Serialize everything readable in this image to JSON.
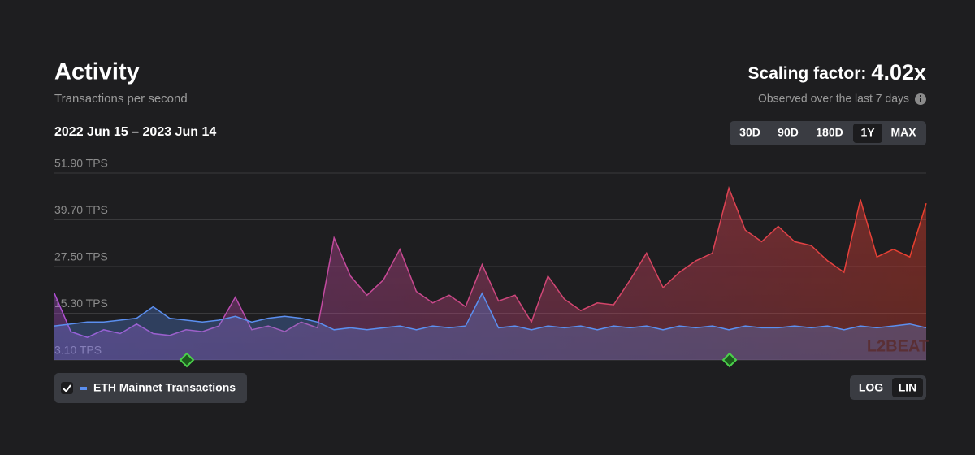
{
  "header": {
    "title": "Activity",
    "subtitle": "Transactions per second",
    "date_range": "2022 Jun 15 – 2023 Jun 14",
    "scaling_label": "Scaling factor:",
    "scaling_value": "4.02x",
    "scaling_note": "Observed over the last 7 days"
  },
  "range_buttons": {
    "labels": [
      "30D",
      "90D",
      "180D",
      "1Y",
      "MAX"
    ],
    "selected": 3
  },
  "scale_buttons": {
    "labels": [
      "LOG",
      "LIN"
    ]
  },
  "chart_data": {
    "type": "area",
    "ylim": [
      3.1,
      51.9
    ],
    "yticks": [
      {
        "value": 3.1,
        "label": "3.10 TPS"
      },
      {
        "value": 15.3,
        "label": "15.30 TPS"
      },
      {
        "value": 27.5,
        "label": "27.50 TPS"
      },
      {
        "value": 39.7,
        "label": "39.70 TPS"
      },
      {
        "value": 51.9,
        "label": "51.90 TPS"
      }
    ],
    "grid": true,
    "log_scale": false,
    "watermark": "L2BEAT",
    "series": [
      {
        "color": [
          "#b04fd4",
          "#ea3f2c"
        ],
        "values": [
          20.5,
          10.5,
          9,
          11,
          10,
          12.5,
          10,
          9.5,
          11,
          10.5,
          12,
          19.5,
          11,
          12,
          10.5,
          13,
          11.5,
          35,
          25,
          20,
          24,
          32,
          21,
          18,
          20,
          17,
          28,
          18.5,
          20,
          13,
          25,
          19,
          16,
          18,
          17.5,
          24,
          31,
          22,
          26,
          29,
          31,
          48,
          37,
          34,
          38,
          34,
          33,
          29,
          26,
          45,
          30,
          32,
          30,
          44
        ]
      },
      {
        "name": "ETH Mainnet Transactions",
        "color": "#5b8ff0",
        "checked": true,
        "values": [
          12,
          12.5,
          13,
          13,
          13.5,
          14,
          17,
          14,
          13.5,
          13,
          13.5,
          14.5,
          13,
          14,
          14.5,
          14,
          13,
          11,
          11.5,
          11,
          11.5,
          12,
          11,
          12,
          11.5,
          12,
          20.5,
          11.5,
          12,
          11,
          12,
          11.5,
          12,
          11,
          12,
          11.5,
          12,
          11,
          12,
          11.5,
          12,
          11,
          12,
          11.5,
          11.5,
          12,
          11.5,
          12,
          11,
          12,
          11.5,
          12,
          12.5,
          11.5
        ]
      }
    ]
  }
}
